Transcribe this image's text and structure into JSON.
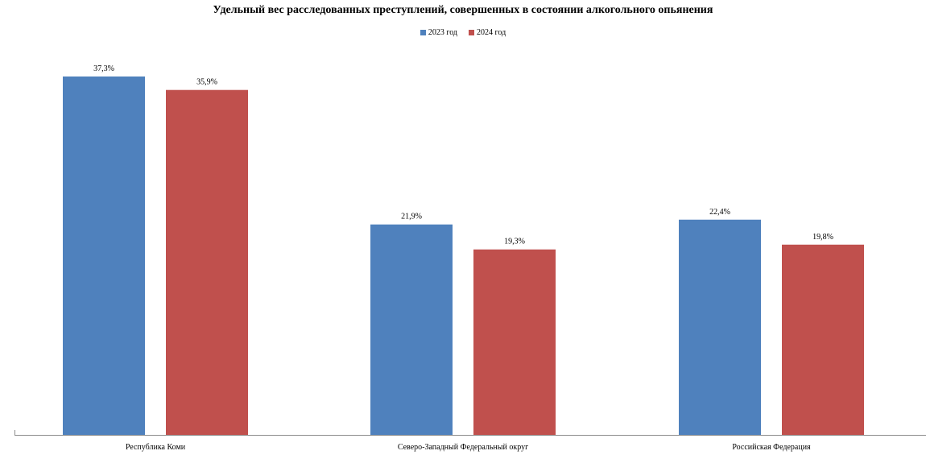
{
  "chart_data": {
    "type": "bar",
    "title": "Удельный вес расследованных преступлений, совершенных в состоянии алкогольного опьянения",
    "categories": [
      "Республика Коми",
      "Северо-Западный Федеральный округ",
      "Российская Федерация"
    ],
    "series": [
      {
        "name": "2023 год",
        "color": "#4F81BD",
        "values": [
          37.3,
          21.9,
          22.4
        ],
        "labels": [
          "37,3%",
          "21,9%",
          "22,4%"
        ]
      },
      {
        "name": "2024 год",
        "color": "#C0504D",
        "values": [
          35.9,
          19.3,
          19.8
        ],
        "labels": [
          "35,9%",
          "19,3%",
          "19,8%"
        ]
      }
    ],
    "ylim": [
      0,
      40
    ],
    "grid": false,
    "legend_position": "top-center",
    "xlabel": "",
    "ylabel": ""
  }
}
